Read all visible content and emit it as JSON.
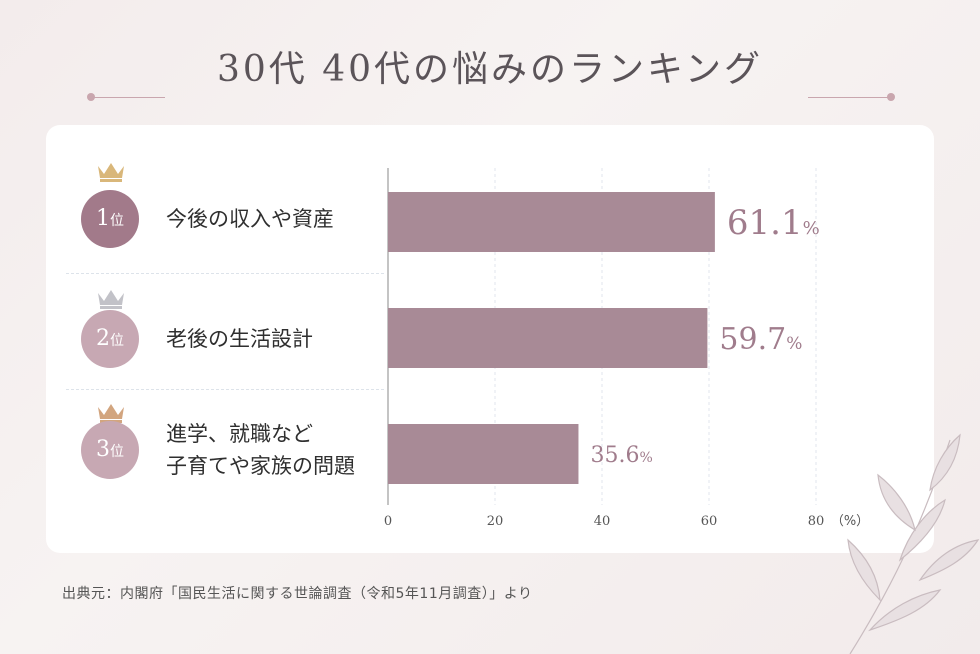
{
  "page": {
    "title": "30代 40代の悩みのランキング",
    "source": "出典元：内閣府「国民生活に関する世論調査（令和5年11月調査）」より"
  },
  "colors": {
    "bar": "#a88a96",
    "badge_1": "#a27a8a",
    "badge_2": "#c7a8b3",
    "badge_3": "#c7a8b3",
    "crown_gold": "#d9b77a",
    "crown_silver": "#c2c2c8",
    "crown_bronze": "#d2a57f",
    "value_text": "#a07c8c"
  },
  "ranks": [
    {
      "num": "1",
      "suffix": "位",
      "lines": [
        "今後の収入や資産"
      ],
      "crown": "gold-crown"
    },
    {
      "num": "2",
      "suffix": "位",
      "lines": [
        "老後の生活設計"
      ],
      "crown": "silver-crown"
    },
    {
      "num": "3",
      "suffix": "位",
      "lines": [
        "進学、就職など",
        "子育てや家族の問題"
      ],
      "crown": "bronze-crown"
    }
  ],
  "chart_data": {
    "type": "bar",
    "orientation": "horizontal",
    "categories": [
      "今後の収入や資産",
      "老後の生活設計",
      "進学、就職など子育てや家族の問題"
    ],
    "values": [
      61.1,
      59.7,
      35.6
    ],
    "value_labels": [
      "61.1",
      "59.7",
      "35.6"
    ],
    "value_unit": "%",
    "xlim": [
      0,
      80
    ],
    "xticks": [
      0,
      20,
      40,
      60,
      80
    ],
    "x_unit_label": "（%）",
    "grid": true
  }
}
